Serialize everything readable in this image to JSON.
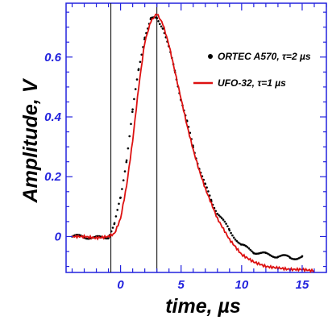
{
  "chart_data": {
    "type": "line",
    "title": "",
    "xlabel": "time, µs",
    "ylabel": "Amplitude, V",
    "xlim": [
      -4.5,
      17
    ],
    "ylim": [
      -0.12,
      0.78
    ],
    "x_ticks": [
      {
        "value": 0,
        "label": "0"
      },
      {
        "value": 5,
        "label": "5"
      },
      {
        "value": 10,
        "label": "10"
      },
      {
        "value": 15,
        "label": "15"
      }
    ],
    "y_ticks": [
      {
        "value": 0,
        "label": "0"
      },
      {
        "value": 0.2,
        "label": "0.2"
      },
      {
        "value": 0.4,
        "label": "0.4"
      },
      {
        "value": 0.6,
        "label": "0.6"
      }
    ],
    "vertical_lines": [
      -0.8,
      3.0
    ],
    "legend_position": "top-right",
    "series": [
      {
        "name": "ORTEC A570, τ=2 µs",
        "style": "dots",
        "color": "#000000",
        "x": [
          -4,
          -3,
          -2,
          -1,
          -0.5,
          0,
          0.5,
          1,
          1.5,
          2,
          2.5,
          3,
          3.5,
          4,
          4.5,
          5,
          5.5,
          6,
          6.5,
          7,
          7.5,
          8,
          9,
          10,
          11,
          12,
          13,
          14,
          15
        ],
        "y": [
          0.0,
          0.0,
          -0.005,
          0.0,
          0.04,
          0.13,
          0.26,
          0.42,
          0.56,
          0.67,
          0.725,
          0.73,
          0.7,
          0.63,
          0.55,
          0.46,
          0.38,
          0.3,
          0.23,
          0.17,
          0.12,
          0.08,
          0.02,
          -0.03,
          -0.05,
          -0.06,
          -0.065,
          -0.07,
          -0.07
        ]
      },
      {
        "name": "UFO-32, τ=1 µs",
        "style": "line",
        "color": "#dd1111",
        "x": [
          -4,
          -3,
          -2,
          -1,
          -0.5,
          0,
          0.5,
          1,
          1.5,
          2,
          2.5,
          3,
          3.5,
          4,
          4.5,
          5,
          5.5,
          6,
          6.5,
          7,
          7.5,
          8,
          9,
          10,
          11,
          12,
          13,
          14,
          15,
          16
        ],
        "y": [
          0.0,
          0.0,
          -0.005,
          0.0,
          0.01,
          0.06,
          0.17,
          0.32,
          0.5,
          0.65,
          0.72,
          0.745,
          0.71,
          0.64,
          0.55,
          0.46,
          0.37,
          0.29,
          0.22,
          0.16,
          0.11,
          0.06,
          -0.01,
          -0.06,
          -0.085,
          -0.1,
          -0.105,
          -0.11,
          -0.11,
          -0.115
        ]
      }
    ]
  }
}
